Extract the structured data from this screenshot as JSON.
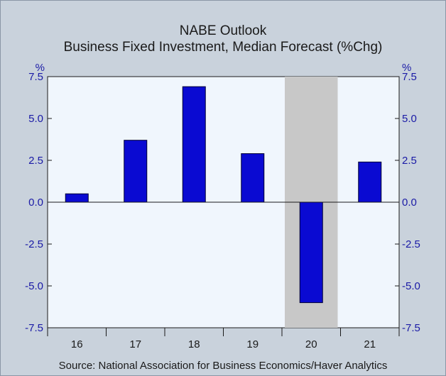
{
  "chart_data": {
    "type": "bar",
    "title": "NABE Outlook",
    "subtitle": "Business Fixed Investment, Median Forecast (%Chg)",
    "categories": [
      "16",
      "17",
      "18",
      "19",
      "20",
      "21"
    ],
    "values": [
      0.5,
      3.7,
      6.9,
      2.9,
      -6.0,
      2.4
    ],
    "ylim": [
      -7.5,
      7.5
    ],
    "yticks": [
      7.5,
      5.0,
      2.5,
      0.0,
      -2.5,
      -5.0,
      -7.5
    ],
    "ytick_labels": [
      "7.5",
      "5.0",
      "2.5",
      "0.0",
      "-2.5",
      "-5.0",
      "-7.5"
    ],
    "yunit_left": "%",
    "yunit_right": "%",
    "shaded_category": "20",
    "grid": false,
    "legend": "none",
    "source": "Source:  National Association for Business Economics/Haver Analytics"
  },
  "colors": {
    "bar": "#0a0ad2",
    "plot_background": "#f0f6fd",
    "frame_background": "#c9d2dc",
    "recession_shade": "#c8c8c8",
    "axis_text": "#1a1aa6"
  }
}
